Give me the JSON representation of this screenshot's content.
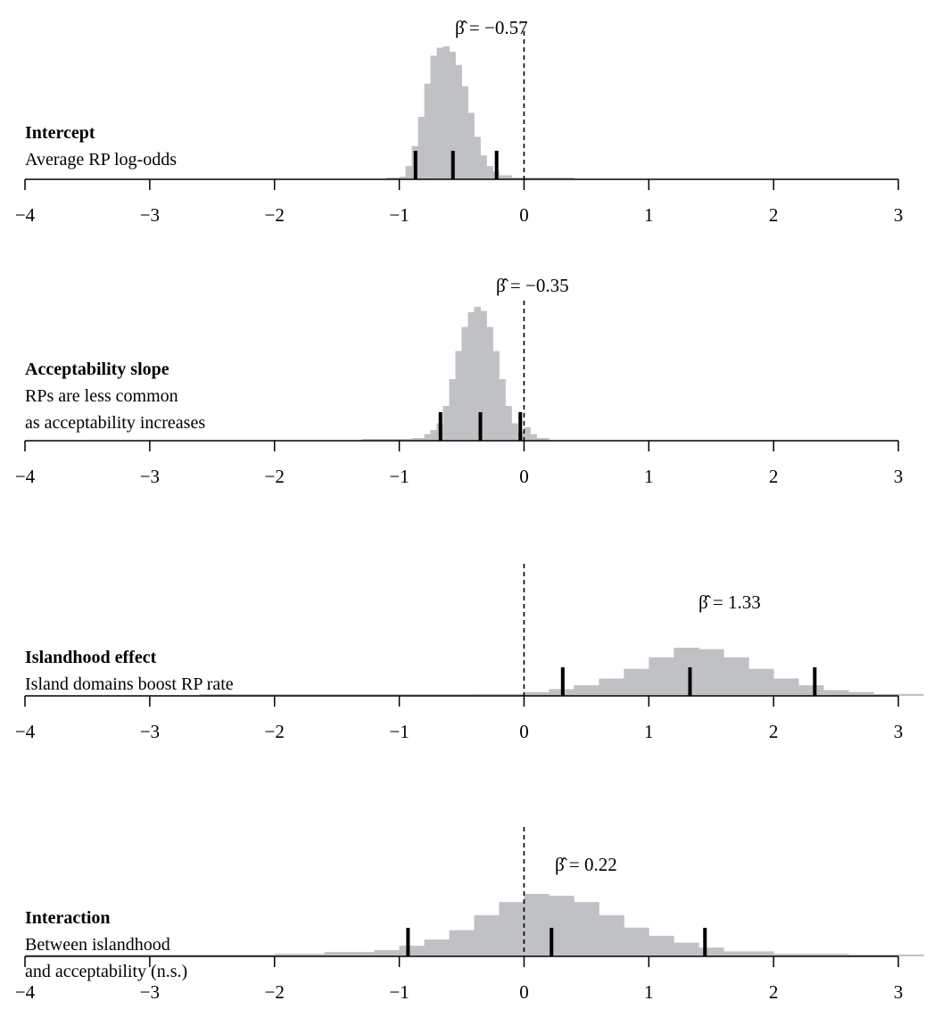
{
  "chart_data": [
    {
      "type": "histogram",
      "title": "Intercept",
      "subtitle_lines": [
        "Average RP log-odds"
      ],
      "estimate_label": "β̂ = −0.57",
      "estimate": -0.57,
      "interval_marks": [
        -0.87,
        -0.57,
        -0.22
      ],
      "reference_line_x": 0,
      "xlim": [
        -4,
        3
      ],
      "xticks": [
        -4,
        -3,
        -2,
        -1,
        0,
        1,
        2,
        3
      ],
      "xtick_labels": [
        "−4",
        "−3",
        "−2",
        "−1",
        "0",
        "1",
        "2",
        "3"
      ],
      "bins": [
        {
          "x0": -1.1,
          "x1": -1.0,
          "h": 0.01
        },
        {
          "x0": -1.0,
          "x1": -0.95,
          "h": 0.02
        },
        {
          "x0": -0.95,
          "x1": -0.9,
          "h": 0.1
        },
        {
          "x0": -0.9,
          "x1": -0.85,
          "h": 0.25
        },
        {
          "x0": -0.85,
          "x1": -0.8,
          "h": 0.47
        },
        {
          "x0": -0.8,
          "x1": -0.75,
          "h": 0.72
        },
        {
          "x0": -0.75,
          "x1": -0.7,
          "h": 0.93
        },
        {
          "x0": -0.7,
          "x1": -0.65,
          "h": 0.99
        },
        {
          "x0": -0.65,
          "x1": -0.6,
          "h": 1.0
        },
        {
          "x0": -0.6,
          "x1": -0.55,
          "h": 0.96
        },
        {
          "x0": -0.55,
          "x1": -0.5,
          "h": 0.86
        },
        {
          "x0": -0.5,
          "x1": -0.45,
          "h": 0.7
        },
        {
          "x0": -0.45,
          "x1": -0.4,
          "h": 0.5
        },
        {
          "x0": -0.4,
          "x1": -0.35,
          "h": 0.32
        },
        {
          "x0": -0.35,
          "x1": -0.3,
          "h": 0.18
        },
        {
          "x0": -0.3,
          "x1": -0.25,
          "h": 0.1
        },
        {
          "x0": -0.25,
          "x1": -0.2,
          "h": 0.06
        },
        {
          "x0": -0.2,
          "x1": -0.1,
          "h": 0.03
        },
        {
          "x0": -0.1,
          "x1": 0.4,
          "h": 0.01
        }
      ]
    },
    {
      "type": "histogram",
      "title": "Acceptability slope",
      "subtitle_lines": [
        "RPs are less common",
        "as acceptability increases"
      ],
      "estimate_label": "β̂ = −0.35",
      "estimate": -0.35,
      "interval_marks": [
        -0.67,
        -0.35,
        -0.03
      ],
      "reference_line_x": 0,
      "xlim": [
        -4,
        3
      ],
      "xticks": [
        -4,
        -3,
        -2,
        -1,
        0,
        1,
        2,
        3
      ],
      "xtick_labels": [
        "−4",
        "−3",
        "−2",
        "−1",
        "0",
        "1",
        "2",
        "3"
      ],
      "bins": [
        {
          "x0": -1.3,
          "x1": -0.9,
          "h": 0.01
        },
        {
          "x0": -0.9,
          "x1": -0.8,
          "h": 0.02
        },
        {
          "x0": -0.8,
          "x1": -0.75,
          "h": 0.05
        },
        {
          "x0": -0.75,
          "x1": -0.7,
          "h": 0.08
        },
        {
          "x0": -0.7,
          "x1": -0.65,
          "h": 0.13
        },
        {
          "x0": -0.65,
          "x1": -0.6,
          "h": 0.26
        },
        {
          "x0": -0.6,
          "x1": -0.55,
          "h": 0.46
        },
        {
          "x0": -0.55,
          "x1": -0.5,
          "h": 0.67
        },
        {
          "x0": -0.5,
          "x1": -0.45,
          "h": 0.85
        },
        {
          "x0": -0.45,
          "x1": -0.4,
          "h": 0.96
        },
        {
          "x0": -0.4,
          "x1": -0.35,
          "h": 1.0
        },
        {
          "x0": -0.35,
          "x1": -0.3,
          "h": 0.97
        },
        {
          "x0": -0.3,
          "x1": -0.25,
          "h": 0.85
        },
        {
          "x0": -0.25,
          "x1": -0.2,
          "h": 0.67
        },
        {
          "x0": -0.2,
          "x1": -0.15,
          "h": 0.46
        },
        {
          "x0": -0.15,
          "x1": -0.1,
          "h": 0.26
        },
        {
          "x0": -0.1,
          "x1": -0.05,
          "h": 0.13
        },
        {
          "x0": -0.05,
          "x1": 0.0,
          "h": 0.07
        },
        {
          "x0": 0.0,
          "x1": 0.05,
          "h": 0.1
        },
        {
          "x0": 0.05,
          "x1": 0.1,
          "h": 0.05
        },
        {
          "x0": 0.1,
          "x1": 0.2,
          "h": 0.02
        }
      ]
    },
    {
      "type": "histogram",
      "title": "Islandhood effect",
      "subtitle_lines": [
        "Island domains boost RP rate"
      ],
      "estimate_label": "β̂ = 1.33",
      "estimate": 1.33,
      "interval_marks": [
        0.31,
        1.33,
        2.33
      ],
      "reference_line_x": 0,
      "xlim": [
        -4,
        3
      ],
      "xticks": [
        -4,
        -3,
        -2,
        -1,
        0,
        1,
        2,
        3
      ],
      "xtick_labels": [
        "−4",
        "−3",
        "−2",
        "−1",
        "0",
        "1",
        "2",
        "3"
      ],
      "bins": [
        {
          "x0": -2.6,
          "x1": -1.4,
          "h": 0.02
        },
        {
          "x0": -1.4,
          "x1": -0.4,
          "h": 0.03
        },
        {
          "x0": -0.4,
          "x1": 0.0,
          "h": 0.04
        },
        {
          "x0": 0.0,
          "x1": 0.2,
          "h": 0.08
        },
        {
          "x0": 0.2,
          "x1": 0.4,
          "h": 0.14
        },
        {
          "x0": 0.4,
          "x1": 0.6,
          "h": 0.22
        },
        {
          "x0": 0.6,
          "x1": 0.8,
          "h": 0.36
        },
        {
          "x0": 0.8,
          "x1": 1.0,
          "h": 0.56
        },
        {
          "x0": 1.0,
          "x1": 1.2,
          "h": 0.8
        },
        {
          "x0": 1.2,
          "x1": 1.4,
          "h": 1.0
        },
        {
          "x0": 1.4,
          "x1": 1.6,
          "h": 0.97
        },
        {
          "x0": 1.6,
          "x1": 1.8,
          "h": 0.8
        },
        {
          "x0": 1.8,
          "x1": 2.0,
          "h": 0.56
        },
        {
          "x0": 2.0,
          "x1": 2.2,
          "h": 0.36
        },
        {
          "x0": 2.2,
          "x1": 2.4,
          "h": 0.22
        },
        {
          "x0": 2.4,
          "x1": 2.6,
          "h": 0.12
        },
        {
          "x0": 2.6,
          "x1": 2.8,
          "h": 0.08
        },
        {
          "x0": 2.8,
          "x1": 3.2,
          "h": 0.04
        }
      ]
    },
    {
      "type": "histogram",
      "title": "Interaction",
      "subtitle_lines": [
        "Between islandhood",
        "and acceptability (n.s.)"
      ],
      "estimate_label": "β̂ = 0.22",
      "estimate": 0.22,
      "interval_marks": [
        -0.93,
        0.22,
        1.45
      ],
      "reference_line_x": 0,
      "xlim": [
        -4,
        3
      ],
      "xticks": [
        -4,
        -3,
        -2,
        -1,
        0,
        1,
        2,
        3
      ],
      "xtick_labels": [
        "−4",
        "−3",
        "−2",
        "−1",
        "0",
        "1",
        "2",
        "3"
      ],
      "bins": [
        {
          "x0": -4.0,
          "x1": -2.0,
          "h": 0.02
        },
        {
          "x0": -2.0,
          "x1": -1.6,
          "h": 0.04
        },
        {
          "x0": -1.6,
          "x1": -1.2,
          "h": 0.07
        },
        {
          "x0": -1.2,
          "x1": -1.0,
          "h": 0.1
        },
        {
          "x0": -1.0,
          "x1": -0.8,
          "h": 0.17
        },
        {
          "x0": -0.8,
          "x1": -0.6,
          "h": 0.27
        },
        {
          "x0": -0.6,
          "x1": -0.4,
          "h": 0.42
        },
        {
          "x0": -0.4,
          "x1": -0.2,
          "h": 0.66
        },
        {
          "x0": -0.2,
          "x1": 0.0,
          "h": 0.87
        },
        {
          "x0": 0.0,
          "x1": 0.2,
          "h": 1.0
        },
        {
          "x0": 0.2,
          "x1": 0.4,
          "h": 0.97
        },
        {
          "x0": 0.4,
          "x1": 0.6,
          "h": 0.87
        },
        {
          "x0": 0.6,
          "x1": 0.8,
          "h": 0.66
        },
        {
          "x0": 0.8,
          "x1": 1.0,
          "h": 0.46
        },
        {
          "x0": 1.0,
          "x1": 1.2,
          "h": 0.33
        },
        {
          "x0": 1.2,
          "x1": 1.4,
          "h": 0.22
        },
        {
          "x0": 1.4,
          "x1": 1.6,
          "h": 0.14
        },
        {
          "x0": 1.6,
          "x1": 2.0,
          "h": 0.08
        },
        {
          "x0": 2.0,
          "x1": 2.6,
          "h": 0.04
        },
        {
          "x0": 2.6,
          "x1": 3.2,
          "h": 0.02
        }
      ]
    }
  ],
  "colors": {
    "histogram_fill": "#c0c1c5",
    "axis": "#000000",
    "interval_marks": "#000000",
    "reference_line": "#000000"
  }
}
